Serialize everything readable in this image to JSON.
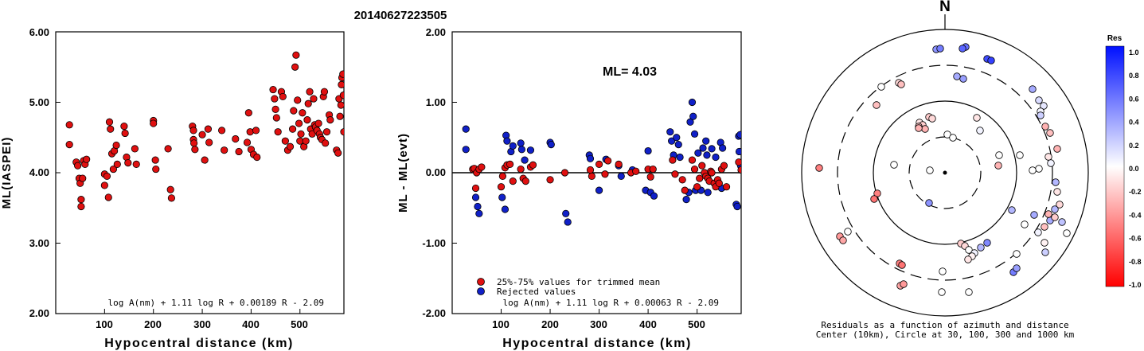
{
  "title": "20140627223505",
  "charts": {
    "left": {
      "ylabel": "ML(IASPEI)",
      "xlabel": "Hypocentral distance (km)",
      "yticks": [
        "2.00",
        "3.00",
        "4.00",
        "5.00",
        "6.00"
      ],
      "xticks": [
        "100",
        "200",
        "300",
        "400",
        "500"
      ],
      "formula": "log A(nm) + 1.11 log R + 0.00189 R - 2.09"
    },
    "middle": {
      "ylabel": "ML - ML(evt)",
      "xlabel": "Hypocentral distance (km)",
      "yticks": [
        "-2.00",
        "-1.00",
        "0.00",
        "1.00",
        "2.00"
      ],
      "xticks": [
        "100",
        "200",
        "300",
        "400",
        "500"
      ],
      "ml_label": "ML= 4.03",
      "legend_trimmed": "25%-75% values for trimmed mean",
      "legend_rejected": "Rejected values",
      "formula": "log A(nm) + 1.11 log R + 0.00063 R - 2.09"
    },
    "polar": {
      "north": "N",
      "caption1": "Residuals as a function of azimuth and distance",
      "caption2": "Center (10km), Circle at 30, 100, 300 and 1000 km"
    },
    "colorbar": {
      "title": "Res",
      "labels": [
        "1.0",
        "0.8",
        "0.6",
        "0.4",
        "0.2",
        "0.0",
        "-0.2",
        "-0.4",
        "-0.6",
        "-0.8",
        "-1.0"
      ]
    }
  },
  "colors": {
    "trimmed": "#e01010",
    "rejected": "#1020c8",
    "axis": "#000000"
  },
  "chart_data": [
    {
      "type": "scatter",
      "title": "20140627223505",
      "xlabel": "Hypocentral distance (km)",
      "ylabel": "ML(IASPEI)",
      "xlim": [
        0,
        590
      ],
      "ylim": [
        2.0,
        6.0
      ],
      "series": [
        {
          "points": [
            [
              28,
              4.68
            ],
            [
              28,
              4.4
            ],
            [
              42,
              4.15
            ],
            [
              45,
              4.1
            ],
            [
              48,
              3.92
            ],
            [
              50,
              3.85
            ],
            [
              52,
              3.62
            ],
            [
              52,
              3.52
            ],
            [
              55,
              3.92
            ],
            [
              57,
              4.17
            ],
            [
              60,
              4.12
            ],
            [
              63,
              4.19
            ],
            [
              100,
              3.98
            ],
            [
              100,
              3.82
            ],
            [
              105,
              3.95
            ],
            [
              108,
              3.65
            ],
            [
              110,
              4.72
            ],
            [
              112,
              4.62
            ],
            [
              115,
              4.27
            ],
            [
              118,
              4.05
            ],
            [
              120,
              4.31
            ],
            [
              124,
              4.39
            ],
            [
              126,
              4.12
            ],
            [
              140,
              4.66
            ],
            [
              142,
              4.56
            ],
            [
              145,
              4.22
            ],
            [
              148,
              4.14
            ],
            [
              162,
              4.34
            ],
            [
              165,
              4.12
            ],
            [
              200,
              4.74
            ],
            [
              200,
              4.7
            ],
            [
              204,
              4.18
            ],
            [
              205,
              4.05
            ],
            [
              230,
              4.34
            ],
            [
              235,
              3.76
            ],
            [
              237,
              3.64
            ],
            [
              280,
              4.66
            ],
            [
              282,
              4.6
            ],
            [
              282,
              4.47
            ],
            [
              283,
              4.42
            ],
            [
              285,
              4.33
            ],
            [
              300,
              4.54
            ],
            [
              305,
              4.18
            ],
            [
              312,
              4.62
            ],
            [
              314,
              4.43
            ],
            [
              340,
              4.6
            ],
            [
              345,
              4.32
            ],
            [
              368,
              4.48
            ],
            [
              375,
              4.3
            ],
            [
              392,
              4.43
            ],
            [
              395,
              4.85
            ],
            [
              398,
              4.58
            ],
            [
              400,
              4.33
            ],
            [
              405,
              4.26
            ],
            [
              410,
              4.6
            ],
            [
              412,
              4.22
            ],
            [
              445,
              5.18
            ],
            [
              448,
              5.05
            ],
            [
              450,
              4.9
            ],
            [
              452,
              4.78
            ],
            [
              455,
              4.58
            ],
            [
              462,
              5.15
            ],
            [
              465,
              5.08
            ],
            [
              470,
              4.45
            ],
            [
              475,
              4.32
            ],
            [
              480,
              4.37
            ],
            [
              485,
              4.62
            ],
            [
              487,
              4.88
            ],
            [
              490,
              5.5
            ],
            [
              492,
              5.67
            ],
            [
              495,
              5.03
            ],
            [
              498,
              4.7
            ],
            [
              500,
              4.45
            ],
            [
              502,
              4.55
            ],
            [
              505,
              4.85
            ],
            [
              508,
              4.37
            ],
            [
              512,
              4.45
            ],
            [
              515,
              4.75
            ],
            [
              517,
              4.98
            ],
            [
              520,
              5.15
            ],
            [
              522,
              4.62
            ],
            [
              525,
              4.55
            ],
            [
              528,
              5.05
            ],
            [
              530,
              4.68
            ],
            [
              532,
              4.65
            ],
            [
              535,
              4.6
            ],
            [
              538,
              4.7
            ],
            [
              540,
              4.55
            ],
            [
              542,
              4.5
            ],
            [
              545,
              4.47
            ],
            [
              548,
              5.08
            ],
            [
              550,
              5.15
            ],
            [
              552,
              4.42
            ],
            [
              555,
              4.58
            ],
            [
              560,
              4.82
            ],
            [
              562,
              4.75
            ],
            [
              575,
              4.32
            ],
            [
              578,
              4.28
            ],
            [
              580,
              5.05
            ],
            [
              582,
              4.8
            ],
            [
              584,
              4.96
            ],
            [
              585,
              5.25
            ],
            [
              586,
              5.35
            ],
            [
              588,
              5.4
            ],
            [
              589,
              5.1
            ],
            [
              590,
              4.58
            ]
          ]
        }
      ]
    },
    {
      "type": "scatter",
      "xlabel": "Hypocentral distance (km)",
      "ylabel": "ML - ML(evt)",
      "xlim": [
        0,
        590
      ],
      "ylim": [
        -2.0,
        2.0
      ],
      "series": [
        {
          "name": "25%-75% values for trimmed mean",
          "points": [
            [
              42,
              0.05
            ],
            [
              45,
              0.06
            ],
            [
              48,
              -0.22
            ],
            [
              50,
              0.0
            ],
            [
              55,
              0.05
            ],
            [
              60,
              0.08
            ],
            [
              100,
              -0.2
            ],
            [
              103,
              -0.05
            ],
            [
              108,
              0.07
            ],
            [
              112,
              0.11
            ],
            [
              118,
              0.12
            ],
            [
              124,
              -0.12
            ],
            [
              140,
              0.05
            ],
            [
              145,
              -0.08
            ],
            [
              150,
              -0.12
            ],
            [
              160,
              0.08
            ],
            [
              165,
              0.11
            ],
            [
              200,
              -0.1
            ],
            [
              230,
              0.0
            ],
            [
              282,
              0.04
            ],
            [
              285,
              -0.05
            ],
            [
              300,
              0.12
            ],
            [
              312,
              -0.02
            ],
            [
              318,
              0.17
            ],
            [
              340,
              0.12
            ],
            [
              365,
              0.0
            ],
            [
              375,
              0.02
            ],
            [
              400,
              0.05
            ],
            [
              405,
              -0.06
            ],
            [
              410,
              0.05
            ],
            [
              450,
              0.18
            ],
            [
              455,
              -0.02
            ],
            [
              470,
              -0.1
            ],
            [
              475,
              -0.25
            ],
            [
              490,
              0.18
            ],
            [
              495,
              0.05
            ],
            [
              500,
              -0.2
            ],
            [
              505,
              -0.08
            ],
            [
              510,
              0.1
            ],
            [
              515,
              0.0
            ],
            [
              518,
              -0.05
            ],
            [
              522,
              -0.08
            ],
            [
              525,
              -0.12
            ],
            [
              528,
              0.02
            ],
            [
              530,
              0.0
            ],
            [
              535,
              -0.15
            ],
            [
              538,
              -0.2
            ],
            [
              542,
              -0.1
            ],
            [
              545,
              -0.15
            ],
            [
              550,
              0.05
            ],
            [
              555,
              0.1
            ],
            [
              560,
              -0.2
            ],
            [
              585,
              0.15
            ],
            [
              590,
              0.04
            ]
          ]
        },
        {
          "name": "Rejected values",
          "points": [
            [
              28,
              0.62
            ],
            [
              28,
              0.33
            ],
            [
              48,
              -0.35
            ],
            [
              52,
              -0.48
            ],
            [
              55,
              -0.58
            ],
            [
              102,
              -0.35
            ],
            [
              108,
              -0.52
            ],
            [
              110,
              0.53
            ],
            [
              112,
              0.45
            ],
            [
              120,
              0.3
            ],
            [
              124,
              0.38
            ],
            [
              140,
              0.42
            ],
            [
              142,
              0.33
            ],
            [
              148,
              0.18
            ],
            [
              160,
              0.32
            ],
            [
              200,
              0.43
            ],
            [
              202,
              0.4
            ],
            [
              232,
              -0.58
            ],
            [
              236,
              -0.7
            ],
            [
              280,
              0.25
            ],
            [
              282,
              0.2
            ],
            [
              300,
              -0.25
            ],
            [
              314,
              0.19
            ],
            [
              340,
              0.1
            ],
            [
              345,
              -0.05
            ],
            [
              368,
              0.04
            ],
            [
              395,
              -0.25
            ],
            [
              400,
              0.31
            ],
            [
              405,
              -0.28
            ],
            [
              412,
              -0.33
            ],
            [
              445,
              0.58
            ],
            [
              448,
              0.45
            ],
            [
              452,
              0.25
            ],
            [
              458,
              0.5
            ],
            [
              462,
              0.4
            ],
            [
              465,
              0.22
            ],
            [
              478,
              -0.38
            ],
            [
              483,
              -0.28
            ],
            [
              486,
              0.72
            ],
            [
              490,
              1.0
            ],
            [
              492,
              0.8
            ],
            [
              495,
              0.55
            ],
            [
              497,
              -0.25
            ],
            [
              502,
              0.28
            ],
            [
              508,
              -0.25
            ],
            [
              512,
              0.35
            ],
            [
              518,
              0.45
            ],
            [
              520,
              0.25
            ],
            [
              522,
              -0.28
            ],
            [
              530,
              0.34
            ],
            [
              538,
              0.22
            ],
            [
              548,
              0.43
            ],
            [
              550,
              -0.22
            ],
            [
              552,
              0.35
            ],
            [
              580,
              -0.45
            ],
            [
              582,
              -0.48
            ],
            [
              585,
              0.52
            ],
            [
              586,
              0.3
            ],
            [
              588,
              0.54
            ],
            [
              589,
              0.1
            ]
          ]
        }
      ]
    }
  ]
}
